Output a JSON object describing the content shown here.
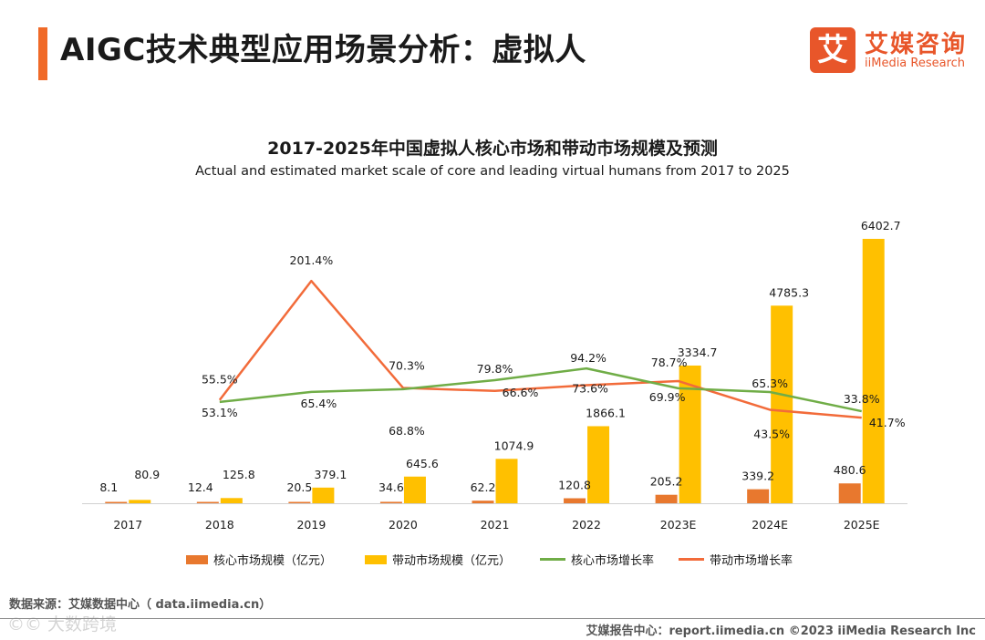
{
  "header": {
    "title": "AIGC技术典型应用场景分析：虚拟人"
  },
  "logo": {
    "icon_char": "艾",
    "cn": "艾媒咨询",
    "en": "iiMedia Research",
    "color": "#e8562a"
  },
  "colors": {
    "core_bar": "#e8782e",
    "lead_bar": "#ffc000",
    "core_line": "#70ad47",
    "lead_line": "#f26b3a",
    "accent": "#f06a28"
  },
  "chart_data": {
    "type": "bar",
    "title": "2017-2025年中国虚拟人核心市场和带动市场规模及预测",
    "subtitle": "Actual and estimated market scale of core and leading virtual humans from 2017 to 2025",
    "categories": [
      "2017",
      "2018",
      "2019",
      "2020",
      "2021",
      "2022",
      "2023E",
      "2024E",
      "2025E"
    ],
    "series": [
      {
        "name": "核心市场规模（亿元）",
        "kind": "bar",
        "values": [
          8.1,
          12.4,
          20.5,
          34.6,
          62.2,
          120.8,
          205.2,
          339.2,
          480.6
        ],
        "labels": [
          "8.1",
          "12.4",
          "20.5",
          "34.6",
          "62.2",
          "120.8",
          "205.2",
          "339.2",
          "480.6"
        ]
      },
      {
        "name": "带动市场规模（亿元）",
        "kind": "bar",
        "values": [
          80.9,
          125.8,
          379.1,
          645.6,
          1074.9,
          1866.1,
          3334.7,
          4785.3,
          6402.7
        ],
        "labels": [
          "80.9",
          "125.8",
          "379.1",
          "645.6",
          "1074.9",
          "1866.1",
          "3334.7",
          "4785.3",
          "6402.7"
        ]
      },
      {
        "name": "核心市场增长率",
        "kind": "line",
        "values": [
          null,
          53.1,
          65.4,
          68.8,
          79.8,
          94.2,
          69.9,
          65.3,
          41.7
        ],
        "labels": [
          "",
          "53.1%",
          "65.4%",
          "68.8%",
          "79.8%",
          "94.2%",
          "69.9%",
          "65.3%",
          "41.7%"
        ]
      },
      {
        "name": "带动市场增长率",
        "kind": "line",
        "values": [
          null,
          55.5,
          201.4,
          70.3,
          66.6,
          73.6,
          78.7,
          43.5,
          33.8
        ],
        "labels": [
          "",
          "55.5%",
          "201.4%",
          "70.3%",
          "66.6%",
          "73.6%",
          "78.7%",
          "43.5%",
          "33.8%"
        ]
      }
    ],
    "bar_ylim": [
      0,
      6500
    ],
    "line_ylim": [
      -80,
      215
    ],
    "grid": false,
    "legend": "bottom"
  },
  "source": "数据来源：艾媒数据中心（ data.iimedia.cn）",
  "watermark": "©© 大数跨境",
  "footer": "艾媒报告中心：report.iimedia.cn   ©2023  iiMedia Research  Inc"
}
